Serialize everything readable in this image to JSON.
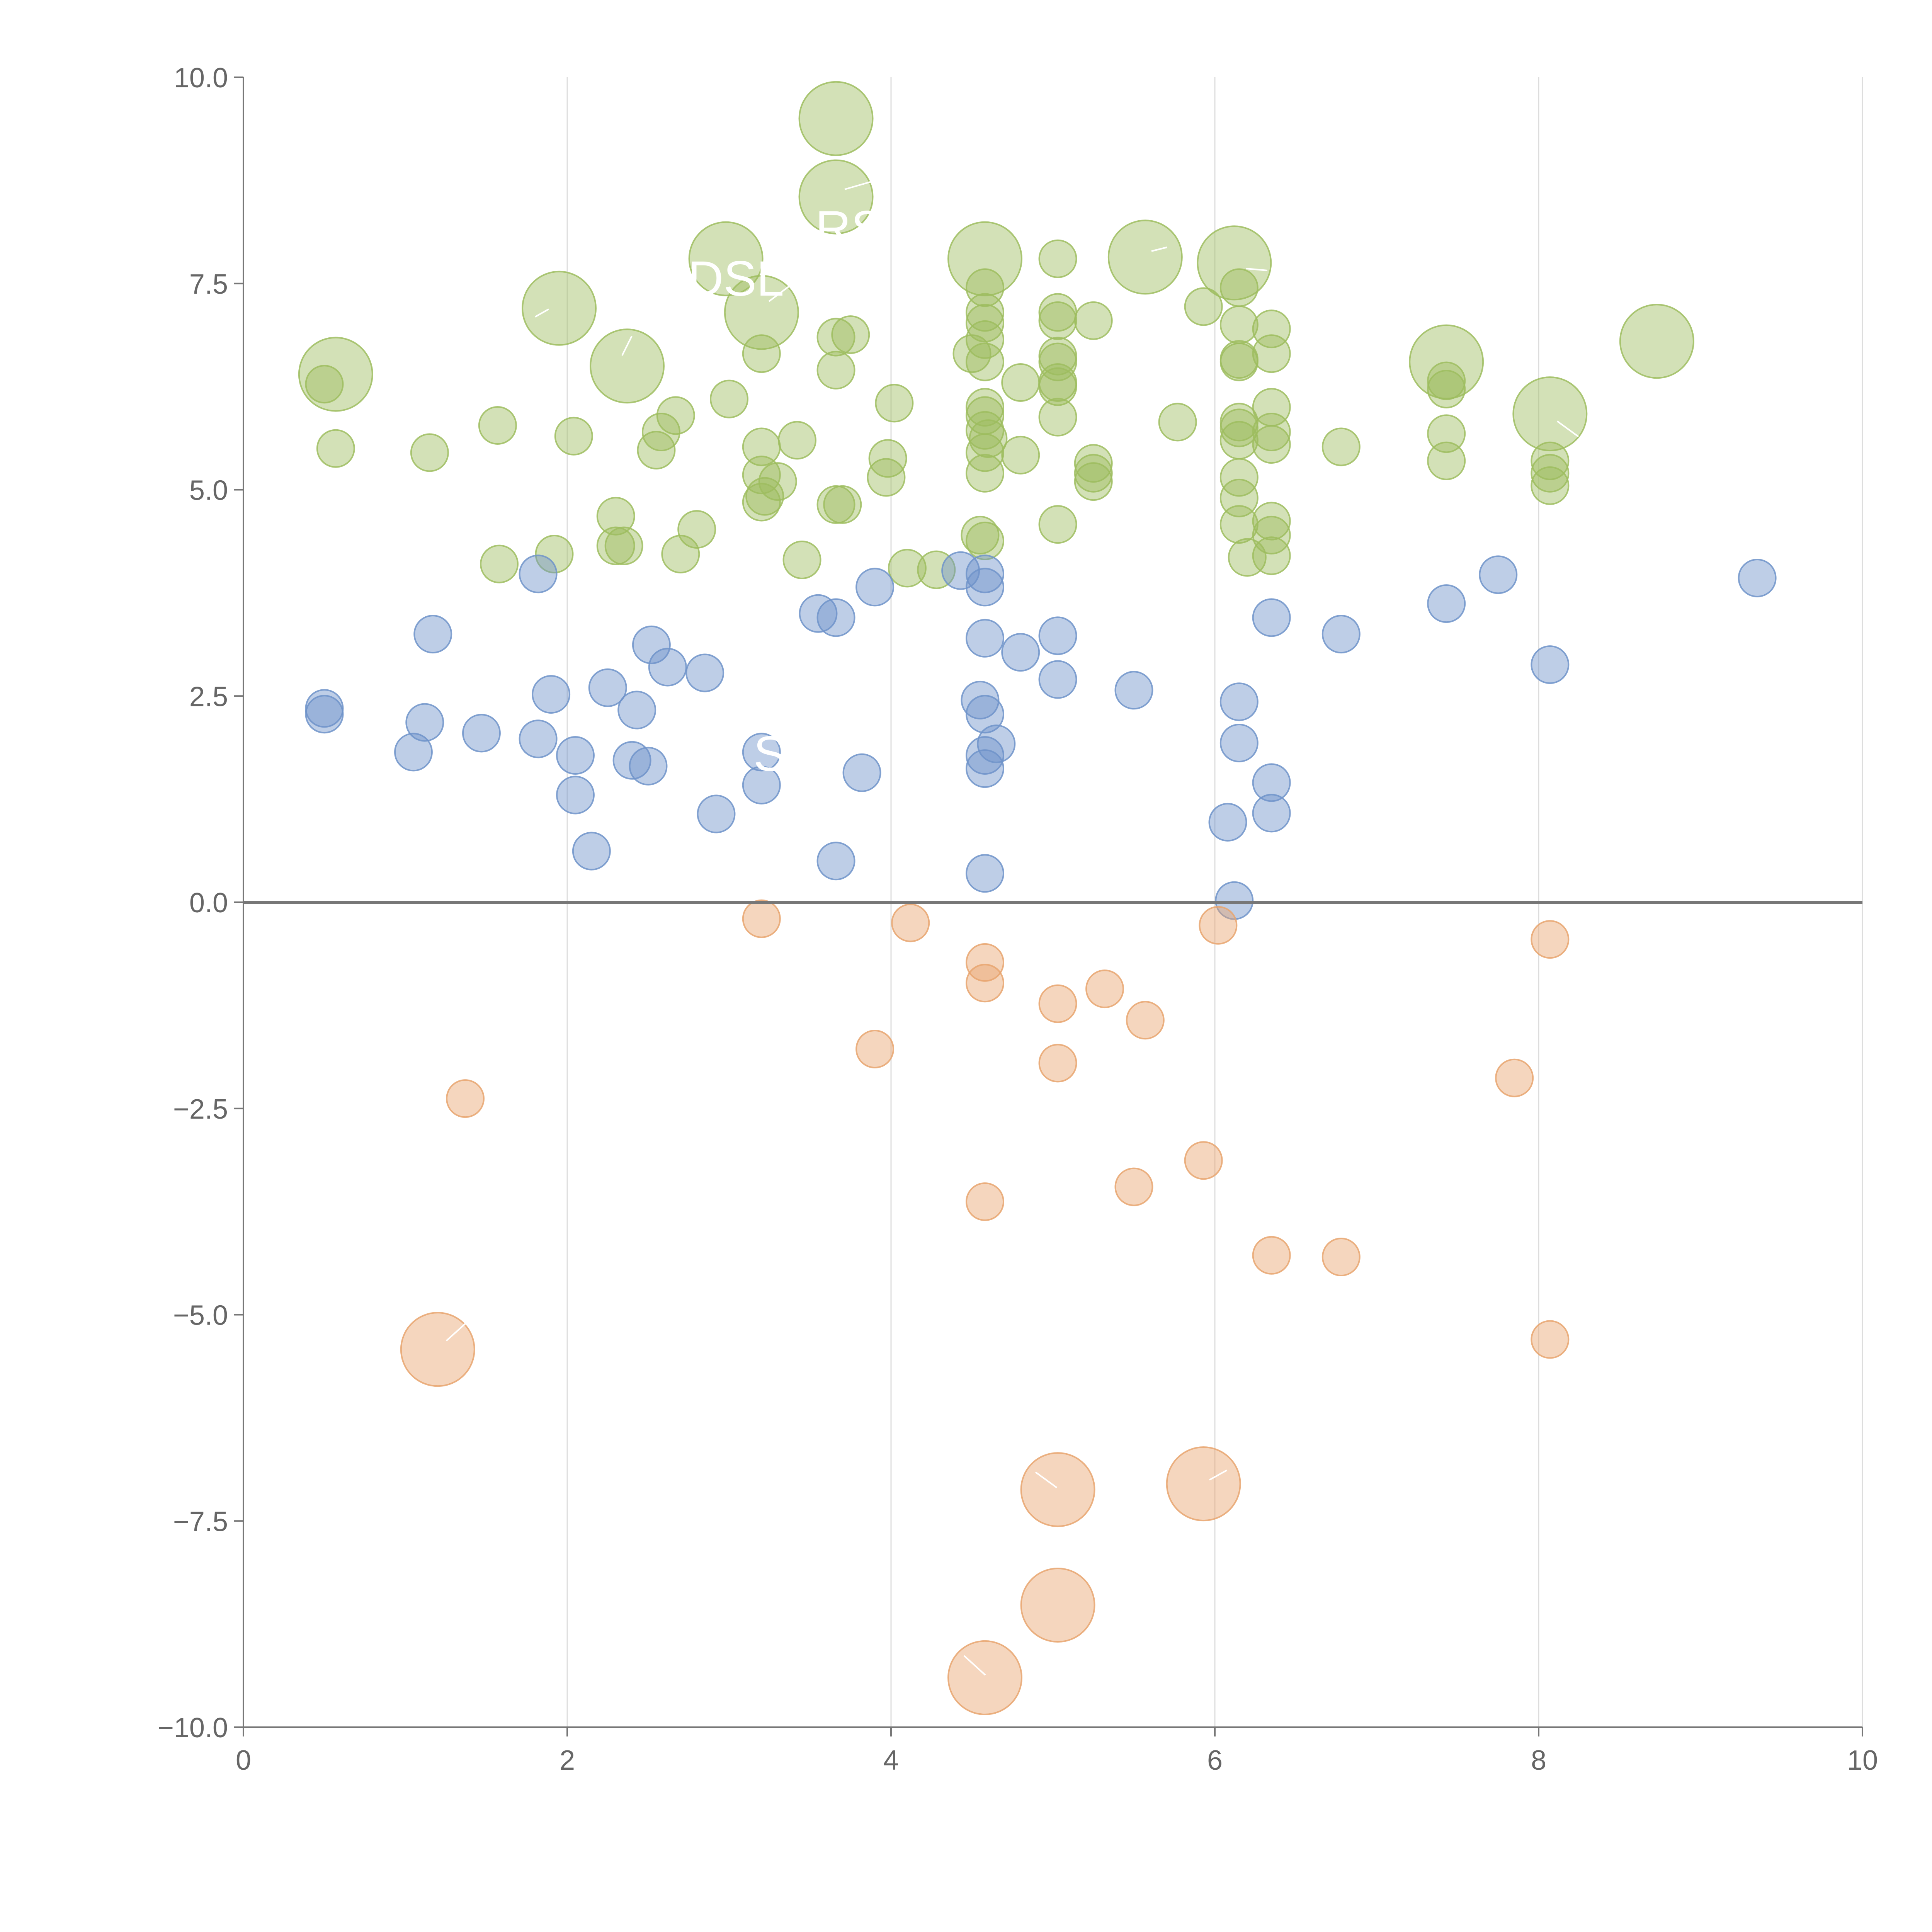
{
  "chart_data": {
    "type": "scatter",
    "title": "",
    "xlabel": "",
    "ylabel": "",
    "xlim": [
      0,
      10
    ],
    "ylim": [
      -10,
      10
    ],
    "x_ticks": [
      0,
      2,
      4,
      6,
      8,
      10
    ],
    "y_ticks": [
      -10,
      -7.5,
      -5,
      -2.5,
      0,
      2.5,
      5,
      7.5,
      10
    ],
    "x_tick_labels": [
      "0",
      "2",
      "4",
      "6",
      "8",
      "10"
    ],
    "y_tick_labels": [
      "−10.0",
      "−7.5",
      "−5.0",
      "−2.5",
      "0.0",
      "2.5",
      "5.0",
      "7.5",
      "10.0"
    ],
    "grid": "vertical",
    "reference_line_y": 0,
    "size_unit_note": "size: 1 = small bubble, 2 = large bubble",
    "series": [
      {
        "name": "green",
        "color": "#9dbd5f",
        "points": [
          [
            3.66,
            9.5,
            2
          ],
          [
            3.66,
            8.55,
            2
          ],
          [
            2.98,
            7.8,
            2
          ],
          [
            3.2,
            7.15,
            2
          ],
          [
            1.95,
            7.2,
            2
          ],
          [
            2.37,
            6.5,
            2
          ],
          [
            0.57,
            6.4,
            2
          ],
          [
            4.58,
            7.8,
            2
          ],
          [
            5.57,
            7.82,
            2
          ],
          [
            6.12,
            7.75,
            2
          ],
          [
            7.43,
            6.55,
            2
          ],
          [
            8.73,
            6.8,
            2
          ],
          [
            8.07,
            5.92,
            2
          ],
          [
            0.5,
            6.28,
            1
          ],
          [
            0.57,
            5.5,
            1
          ],
          [
            1.15,
            5.45,
            1
          ],
          [
            1.57,
            5.78,
            1
          ],
          [
            1.58,
            4.1,
            1
          ],
          [
            1.92,
            4.22,
            1
          ],
          [
            2.04,
            5.65,
            1
          ],
          [
            2.3,
            4.68,
            1
          ],
          [
            2.3,
            4.32,
            1
          ],
          [
            2.35,
            4.32,
            1
          ],
          [
            2.55,
            5.48,
            1
          ],
          [
            2.58,
            5.7,
            1
          ],
          [
            2.67,
            5.9,
            1
          ],
          [
            2.7,
            4.22,
            1
          ],
          [
            2.8,
            4.52,
            1
          ],
          [
            3.0,
            6.1,
            1
          ],
          [
            3.2,
            6.65,
            1
          ],
          [
            3.2,
            5.52,
            1
          ],
          [
            3.2,
            5.18,
            1
          ],
          [
            3.2,
            4.85,
            1
          ],
          [
            3.22,
            4.92,
            1
          ],
          [
            3.3,
            5.1,
            1
          ],
          [
            3.42,
            5.6,
            1
          ],
          [
            3.45,
            4.15,
            1
          ],
          [
            3.66,
            6.85,
            1
          ],
          [
            3.66,
            6.45,
            1
          ],
          [
            3.66,
            4.82,
            1
          ],
          [
            3.7,
            4.82,
            1
          ],
          [
            3.75,
            6.88,
            1
          ],
          [
            3.97,
            5.15,
            1
          ],
          [
            3.98,
            5.38,
            1
          ],
          [
            4.02,
            6.05,
            1
          ],
          [
            4.1,
            4.05,
            1
          ],
          [
            4.28,
            4.03,
            1
          ],
          [
            4.5,
            6.65,
            1
          ],
          [
            4.55,
            4.45,
            1
          ],
          [
            4.58,
            7.45,
            1
          ],
          [
            4.58,
            7.15,
            1
          ],
          [
            4.58,
            7.02,
            1
          ],
          [
            4.58,
            6.82,
            1
          ],
          [
            4.58,
            6.55,
            1
          ],
          [
            4.58,
            6.0,
            1
          ],
          [
            4.58,
            5.9,
            1
          ],
          [
            4.58,
            5.72,
            1
          ],
          [
            4.58,
            5.45,
            1
          ],
          [
            4.58,
            5.2,
            1
          ],
          [
            4.58,
            4.38,
            1
          ],
          [
            4.6,
            5.62,
            1
          ],
          [
            4.8,
            6.3,
            1
          ],
          [
            4.8,
            5.42,
            1
          ],
          [
            5.03,
            7.8,
            1
          ],
          [
            5.03,
            7.15,
            1
          ],
          [
            5.03,
            7.05,
            1
          ],
          [
            5.03,
            6.62,
            1
          ],
          [
            5.03,
            6.55,
            1
          ],
          [
            5.03,
            6.3,
            1
          ],
          [
            5.03,
            6.25,
            1
          ],
          [
            5.03,
            5.88,
            1
          ],
          [
            5.03,
            4.58,
            1
          ],
          [
            5.25,
            7.05,
            1
          ],
          [
            5.25,
            5.32,
            1
          ],
          [
            5.25,
            5.1,
            1
          ],
          [
            5.25,
            5.2,
            1
          ],
          [
            5.77,
            5.82,
            1
          ],
          [
            5.93,
            7.22,
            1
          ],
          [
            6.15,
            7.45,
            1
          ],
          [
            6.15,
            7.0,
            1
          ],
          [
            6.15,
            6.55,
            1
          ],
          [
            6.15,
            6.58,
            1
          ],
          [
            6.15,
            5.82,
            1
          ],
          [
            6.15,
            5.75,
            1
          ],
          [
            6.15,
            5.6,
            1
          ],
          [
            6.15,
            5.15,
            1
          ],
          [
            6.15,
            4.9,
            1
          ],
          [
            6.15,
            4.58,
            1
          ],
          [
            6.2,
            4.18,
            1
          ],
          [
            6.35,
            6.95,
            1
          ],
          [
            6.35,
            6.65,
            1
          ],
          [
            6.35,
            6.0,
            1
          ],
          [
            6.35,
            5.7,
            1
          ],
          [
            6.35,
            5.55,
            1
          ],
          [
            6.35,
            4.62,
            1
          ],
          [
            6.35,
            4.45,
            1
          ],
          [
            6.35,
            4.2,
            1
          ],
          [
            6.78,
            5.52,
            1
          ],
          [
            7.43,
            6.32,
            1
          ],
          [
            7.43,
            6.22,
            1
          ],
          [
            7.43,
            5.68,
            1
          ],
          [
            7.43,
            5.35,
            1
          ],
          [
            8.07,
            5.35,
            1
          ],
          [
            8.07,
            5.2,
            1
          ],
          [
            8.07,
            5.05,
            1
          ]
        ]
      },
      {
        "name": "blue",
        "color": "#6f93c9",
        "points": [
          [
            0.5,
            2.35,
            1
          ],
          [
            0.5,
            2.28,
            1
          ],
          [
            1.05,
            1.82,
            1
          ],
          [
            1.12,
            2.18,
            1
          ],
          [
            1.17,
            3.25,
            1
          ],
          [
            1.47,
            2.05,
            1
          ],
          [
            1.82,
            3.98,
            1
          ],
          [
            1.82,
            1.98,
            1
          ],
          [
            1.9,
            2.52,
            1
          ],
          [
            2.05,
            1.78,
            1
          ],
          [
            2.05,
            1.3,
            1
          ],
          [
            2.15,
            0.62,
            1
          ],
          [
            2.25,
            2.6,
            1
          ],
          [
            2.4,
            1.72,
            1
          ],
          [
            2.43,
            2.33,
            1
          ],
          [
            2.5,
            1.65,
            1
          ],
          [
            2.52,
            3.12,
            1
          ],
          [
            2.62,
            2.85,
            1
          ],
          [
            2.85,
            2.78,
            1
          ],
          [
            2.92,
            1.07,
            1
          ],
          [
            3.2,
            1.82,
            1
          ],
          [
            3.2,
            1.42,
            1
          ],
          [
            3.55,
            3.5,
            1
          ],
          [
            3.66,
            3.45,
            1
          ],
          [
            3.66,
            0.5,
            1
          ],
          [
            3.82,
            1.57,
            1
          ],
          [
            3.9,
            3.82,
            1
          ],
          [
            4.43,
            4.02,
            1
          ],
          [
            4.55,
            2.45,
            1
          ],
          [
            4.58,
            3.98,
            1
          ],
          [
            4.58,
            3.82,
            1
          ],
          [
            4.58,
            3.2,
            1
          ],
          [
            4.58,
            2.28,
            1
          ],
          [
            4.58,
            1.78,
            1
          ],
          [
            4.58,
            1.62,
            1
          ],
          [
            4.58,
            0.35,
            1
          ],
          [
            4.65,
            1.92,
            1
          ],
          [
            4.8,
            3.03,
            1
          ],
          [
            5.03,
            3.23,
            1
          ],
          [
            5.03,
            2.7,
            1
          ],
          [
            5.5,
            2.57,
            1
          ],
          [
            6.08,
            0.97,
            1
          ],
          [
            6.12,
            0.02,
            1
          ],
          [
            6.15,
            2.43,
            1
          ],
          [
            6.15,
            1.93,
            1
          ],
          [
            6.35,
            3.45,
            1
          ],
          [
            6.35,
            1.45,
            1
          ],
          [
            6.35,
            1.08,
            1
          ],
          [
            6.78,
            3.25,
            1
          ],
          [
            7.43,
            3.62,
            1
          ],
          [
            7.75,
            3.97,
            1
          ],
          [
            8.07,
            2.88,
            1
          ],
          [
            9.35,
            3.93,
            1
          ]
        ]
      },
      {
        "name": "orange",
        "color": "#e8a56e",
        "points": [
          [
            1.2,
            -5.42,
            2
          ],
          [
            5.03,
            -7.12,
            2
          ],
          [
            5.93,
            -7.05,
            2
          ],
          [
            5.03,
            -8.52,
            2
          ],
          [
            4.58,
            -9.4,
            2
          ],
          [
            1.37,
            -2.38,
            1
          ],
          [
            3.2,
            -0.2,
            1
          ],
          [
            3.9,
            -1.78,
            1
          ],
          [
            4.12,
            -0.25,
            1
          ],
          [
            4.58,
            -0.73,
            1
          ],
          [
            4.58,
            -0.98,
            1
          ],
          [
            4.58,
            -3.63,
            1
          ],
          [
            5.03,
            -1.23,
            1
          ],
          [
            5.03,
            -1.95,
            1
          ],
          [
            5.32,
            -1.05,
            1
          ],
          [
            5.5,
            -3.45,
            1
          ],
          [
            5.57,
            -1.43,
            1
          ],
          [
            5.93,
            -3.13,
            1
          ],
          [
            6.02,
            -0.28,
            1
          ],
          [
            6.35,
            -4.28,
            1
          ],
          [
            6.78,
            -4.3,
            1
          ],
          [
            7.85,
            -2.13,
            1
          ],
          [
            8.07,
            -0.45,
            1
          ],
          [
            8.07,
            -5.3,
            1
          ]
        ]
      }
    ],
    "point_labels": [
      "RS",
      "DSL",
      "S"
    ]
  }
}
